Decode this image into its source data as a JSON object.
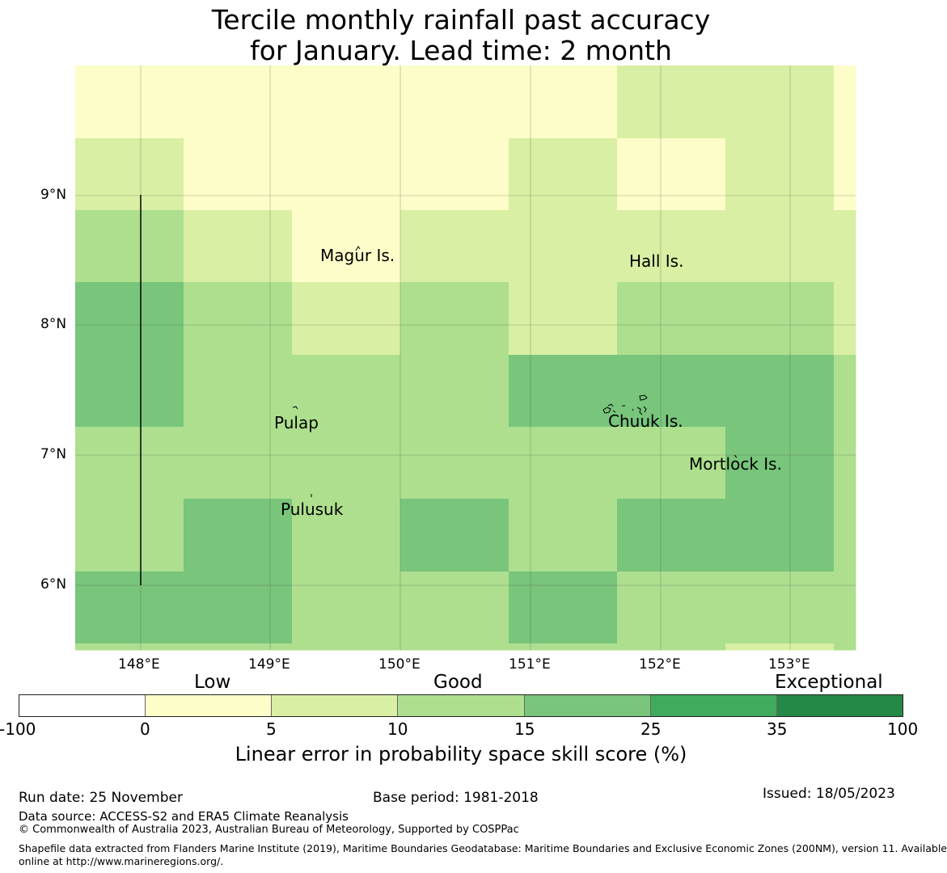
{
  "title": {
    "line1": "Tercile monthly rainfall past accuracy",
    "line2": "for January. Lead time: 2 month"
  },
  "map": {
    "lat_labels": [
      "9°N",
      "8°N",
      "7°N",
      "6°N"
    ],
    "lon_labels": [
      "148°E",
      "149°E",
      "150°E",
      "151°E",
      "152°E",
      "153°E"
    ],
    "places": [
      "Magur Is.",
      "Hall Is.",
      "Pulap",
      "Chuuk Is.",
      "Mortlock Is.",
      "Pulusuk"
    ],
    "grid_scores": [
      [
        0,
        0,
        0,
        0,
        0,
        1,
        1,
        0
      ],
      [
        1,
        0,
        0,
        0,
        1,
        0,
        1,
        0
      ],
      [
        2,
        1,
        0,
        1,
        1,
        1,
        1,
        1
      ],
      [
        3,
        2,
        1,
        2,
        1,
        2,
        2,
        1
      ],
      [
        3,
        2,
        2,
        2,
        3,
        3,
        3,
        2
      ],
      [
        2,
        2,
        2,
        2,
        2,
        2,
        3,
        2
      ],
      [
        2,
        3,
        2,
        3,
        2,
        3,
        3,
        2
      ],
      [
        3,
        3,
        2,
        2,
        3,
        2,
        2,
        2
      ],
      [
        2,
        2,
        2,
        2,
        2,
        2,
        1,
        2
      ]
    ],
    "colors": [
      "#fdfdc9",
      "#d9efa3",
      "#addf8e",
      "#78c57b",
      "#41ab5d",
      "#248846"
    ]
  },
  "colorbar": {
    "categories": [
      "Low",
      "Good",
      "Exceptional"
    ],
    "ticks": [
      "-100",
      "0",
      "5",
      "10",
      "15",
      "25",
      "35",
      "100"
    ],
    "colors": [
      "#ffffff",
      "#fdfdc9",
      "#d9efa3",
      "#addf8e",
      "#78c57b",
      "#41ab5d",
      "#248846"
    ],
    "label": "Linear error in probability space skill score (%)"
  },
  "footer": {
    "run_date": "Run date: 25 November",
    "base_period": "Base period: 1981-2018",
    "issued": "Issued: 18/05/2023",
    "data_source": "Data source: ACCESS-S2 and ERA5 Climate Reanalysis",
    "copyright": "© Commonwealth of Australia 2023, Australian Bureau of Meteorology, Supported by COSPPac",
    "shapefile_line1": "Shapefile data extracted from Flanders Marine Institute (2019), Maritime Boundaries Geodatabase: Maritime Boundaries and Exclusive Economic Zones (200NM), version 11. Available",
    "shapefile_line2": "online at http://www.marineregions.org/."
  }
}
